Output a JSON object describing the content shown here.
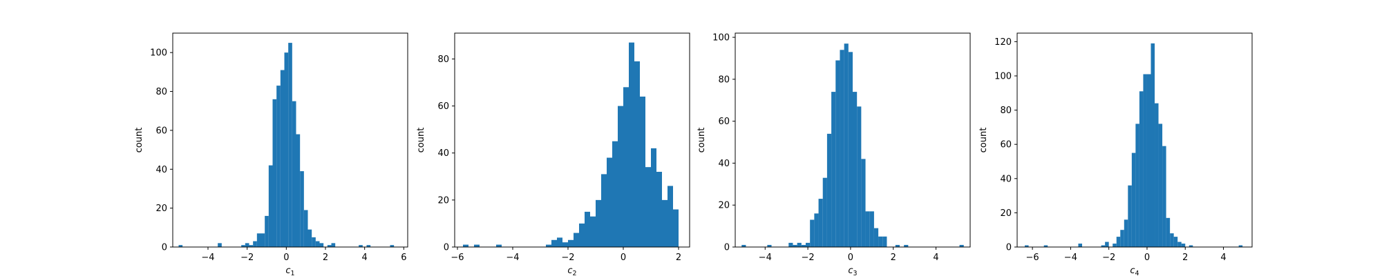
{
  "chart_data": [
    {
      "type": "bar",
      "xlabel": "c",
      "xlabel_subscript": "1",
      "ylabel": "count",
      "xlim": [
        -5.8,
        6.2
      ],
      "ylim": [
        0,
        110
      ],
      "xticks": [
        -4,
        -2,
        0,
        2,
        4,
        6
      ],
      "yticks": [
        0,
        20,
        40,
        60,
        80,
        100
      ],
      "bar_color": "#1f77b4",
      "bins": [
        {
          "x": -5.4,
          "value": 1
        },
        {
          "x": -3.4,
          "value": 2
        },
        {
          "x": -2.2,
          "value": 1
        },
        {
          "x": -2.0,
          "value": 2
        },
        {
          "x": -1.8,
          "value": 1
        },
        {
          "x": -1.6,
          "value": 3
        },
        {
          "x": -1.4,
          "value": 7
        },
        {
          "x": -1.2,
          "value": 7
        },
        {
          "x": -1.0,
          "value": 16
        },
        {
          "x": -0.8,
          "value": 42
        },
        {
          "x": -0.6,
          "value": 76
        },
        {
          "x": -0.4,
          "value": 83
        },
        {
          "x": -0.2,
          "value": 91
        },
        {
          "x": 0.0,
          "value": 100
        },
        {
          "x": 0.2,
          "value": 105
        },
        {
          "x": 0.4,
          "value": 75
        },
        {
          "x": 0.6,
          "value": 58
        },
        {
          "x": 0.8,
          "value": 39
        },
        {
          "x": 1.0,
          "value": 19
        },
        {
          "x": 1.2,
          "value": 9
        },
        {
          "x": 1.4,
          "value": 5
        },
        {
          "x": 1.6,
          "value": 3
        },
        {
          "x": 1.8,
          "value": 2
        },
        {
          "x": 2.2,
          "value": 1
        },
        {
          "x": 2.4,
          "value": 2
        },
        {
          "x": 3.8,
          "value": 1
        },
        {
          "x": 4.2,
          "value": 1
        },
        {
          "x": 5.4,
          "value": 1
        }
      ]
    },
    {
      "type": "bar",
      "xlabel": "c",
      "xlabel_subscript": "2",
      "ylabel": "count",
      "xlim": [
        -6.1,
        2.4
      ],
      "ylim": [
        0,
        91
      ],
      "xticks": [
        -6,
        -4,
        -2,
        0,
        2
      ],
      "yticks": [
        0,
        20,
        40,
        60,
        80
      ],
      "bar_color": "#1f77b4",
      "bins": [
        {
          "x": -5.7,
          "value": 1
        },
        {
          "x": -5.3,
          "value": 1
        },
        {
          "x": -4.5,
          "value": 1
        },
        {
          "x": -2.7,
          "value": 1
        },
        {
          "x": -2.5,
          "value": 3
        },
        {
          "x": -2.3,
          "value": 4
        },
        {
          "x": -2.1,
          "value": 2
        },
        {
          "x": -1.9,
          "value": 3
        },
        {
          "x": -1.7,
          "value": 6
        },
        {
          "x": -1.5,
          "value": 10
        },
        {
          "x": -1.3,
          "value": 15
        },
        {
          "x": -1.1,
          "value": 13
        },
        {
          "x": -0.9,
          "value": 20
        },
        {
          "x": -0.7,
          "value": 31
        },
        {
          "x": -0.5,
          "value": 38
        },
        {
          "x": -0.3,
          "value": 45
        },
        {
          "x": -0.1,
          "value": 60
        },
        {
          "x": 0.1,
          "value": 68
        },
        {
          "x": 0.3,
          "value": 87
        },
        {
          "x": 0.5,
          "value": 79
        },
        {
          "x": 0.7,
          "value": 64
        },
        {
          "x": 0.9,
          "value": 34
        },
        {
          "x": 1.1,
          "value": 42
        },
        {
          "x": 1.3,
          "value": 32
        },
        {
          "x": 1.5,
          "value": 20
        },
        {
          "x": 1.7,
          "value": 26
        },
        {
          "x": 1.9,
          "value": 16
        }
      ]
    },
    {
      "type": "bar",
      "xlabel": "c",
      "xlabel_subscript": "3",
      "ylabel": "count",
      "xlim": [
        -5.4,
        5.6
      ],
      "ylim": [
        0,
        102
      ],
      "xticks": [
        -4,
        -2,
        0,
        2,
        4
      ],
      "yticks": [
        0,
        20,
        40,
        60,
        80,
        100
      ],
      "bar_color": "#1f77b4",
      "bins": [
        {
          "x": -5.0,
          "value": 1
        },
        {
          "x": -3.8,
          "value": 1
        },
        {
          "x": -2.8,
          "value": 2
        },
        {
          "x": -2.6,
          "value": 1
        },
        {
          "x": -2.4,
          "value": 2
        },
        {
          "x": -2.2,
          "value": 1
        },
        {
          "x": -2.0,
          "value": 2
        },
        {
          "x": -1.8,
          "value": 13
        },
        {
          "x": -1.6,
          "value": 16
        },
        {
          "x": -1.4,
          "value": 23
        },
        {
          "x": -1.2,
          "value": 33
        },
        {
          "x": -1.0,
          "value": 54
        },
        {
          "x": -0.8,
          "value": 74
        },
        {
          "x": -0.6,
          "value": 89
        },
        {
          "x": -0.4,
          "value": 94
        },
        {
          "x": -0.2,
          "value": 97
        },
        {
          "x": 0.0,
          "value": 93
        },
        {
          "x": 0.2,
          "value": 74
        },
        {
          "x": 0.4,
          "value": 67
        },
        {
          "x": 0.6,
          "value": 42
        },
        {
          "x": 0.8,
          "value": 17
        },
        {
          "x": 1.0,
          "value": 17
        },
        {
          "x": 1.2,
          "value": 9
        },
        {
          "x": 1.4,
          "value": 5
        },
        {
          "x": 1.6,
          "value": 5
        },
        {
          "x": 2.2,
          "value": 1
        },
        {
          "x": 2.6,
          "value": 1
        },
        {
          "x": 5.2,
          "value": 1
        }
      ]
    },
    {
      "type": "bar",
      "xlabel": "c",
      "xlabel_subscript": "4",
      "ylabel": "count",
      "xlim": [
        -6.8,
        5.5
      ],
      "ylim": [
        0,
        125
      ],
      "xticks": [
        -6,
        -4,
        -2,
        0,
        2,
        4
      ],
      "yticks": [
        0,
        20,
        40,
        60,
        80,
        100,
        120
      ],
      "bar_color": "#1f77b4",
      "bins": [
        {
          "x": -6.3,
          "value": 1
        },
        {
          "x": -5.3,
          "value": 1
        },
        {
          "x": -3.5,
          "value": 2
        },
        {
          "x": -2.3,
          "value": 1
        },
        {
          "x": -2.1,
          "value": 3
        },
        {
          "x": -1.7,
          "value": 2
        },
        {
          "x": -1.5,
          "value": 6
        },
        {
          "x": -1.3,
          "value": 10
        },
        {
          "x": -1.1,
          "value": 16
        },
        {
          "x": -0.9,
          "value": 36
        },
        {
          "x": -0.7,
          "value": 55
        },
        {
          "x": -0.5,
          "value": 72
        },
        {
          "x": -0.3,
          "value": 91
        },
        {
          "x": -0.1,
          "value": 101
        },
        {
          "x": 0.1,
          "value": 101
        },
        {
          "x": 0.3,
          "value": 119
        },
        {
          "x": 0.5,
          "value": 84
        },
        {
          "x": 0.7,
          "value": 72
        },
        {
          "x": 0.9,
          "value": 59
        },
        {
          "x": 1.1,
          "value": 17
        },
        {
          "x": 1.3,
          "value": 8
        },
        {
          "x": 1.5,
          "value": 6
        },
        {
          "x": 1.7,
          "value": 3
        },
        {
          "x": 1.9,
          "value": 2
        },
        {
          "x": 2.3,
          "value": 1
        },
        {
          "x": 4.9,
          "value": 1
        }
      ]
    }
  ]
}
